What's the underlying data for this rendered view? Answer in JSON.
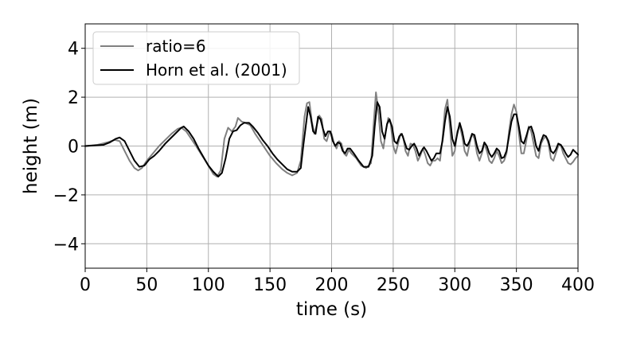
{
  "chart_data": {
    "type": "line",
    "title": "",
    "xlabel": "time (s)",
    "ylabel": "height (m)",
    "xlim": [
      0,
      400
    ],
    "ylim": [
      -5,
      5
    ],
    "xticks": [
      0,
      50,
      100,
      150,
      200,
      250,
      300,
      350,
      400
    ],
    "yticks": [
      -4,
      -2,
      0,
      2,
      4
    ],
    "ytick_labels": [
      "−4",
      "−2",
      "0",
      "2",
      "4"
    ],
    "grid": true,
    "legend_position": "top-left",
    "series": [
      {
        "name": "ratio=6",
        "color": "#808080",
        "points": [
          [
            0,
            0
          ],
          [
            10,
            0.05
          ],
          [
            18,
            0.15
          ],
          [
            24,
            0.25
          ],
          [
            28,
            0.2
          ],
          [
            32,
            -0.2
          ],
          [
            36,
            -0.6
          ],
          [
            40,
            -0.9
          ],
          [
            43,
            -1.0
          ],
          [
            46,
            -0.9
          ],
          [
            50,
            -0.6
          ],
          [
            55,
            -0.3
          ],
          [
            60,
            0.0
          ],
          [
            65,
            0.25
          ],
          [
            70,
            0.5
          ],
          [
            75,
            0.7
          ],
          [
            78,
            0.75
          ],
          [
            82,
            0.6
          ],
          [
            86,
            0.3
          ],
          [
            90,
            0.0
          ],
          [
            95,
            -0.4
          ],
          [
            100,
            -0.8
          ],
          [
            104,
            -1.15
          ],
          [
            107,
            -1.25
          ],
          [
            110,
            -1.0
          ],
          [
            113,
            0.3
          ],
          [
            116,
            0.75
          ],
          [
            119,
            0.6
          ],
          [
            122,
            0.8
          ],
          [
            124,
            1.15
          ],
          [
            127,
            1.0
          ],
          [
            130,
            0.95
          ],
          [
            134,
            0.85
          ],
          [
            138,
            0.5
          ],
          [
            142,
            0.2
          ],
          [
            146,
            -0.1
          ],
          [
            150,
            -0.4
          ],
          [
            155,
            -0.7
          ],
          [
            160,
            -0.95
          ],
          [
            164,
            -1.1
          ],
          [
            168,
            -1.2
          ],
          [
            172,
            -1.1
          ],
          [
            175,
            -0.6
          ],
          [
            178,
            1.2
          ],
          [
            180,
            1.75
          ],
          [
            182,
            1.8
          ],
          [
            184,
            1.0
          ],
          [
            186,
            0.5
          ],
          [
            188,
            0.85
          ],
          [
            190,
            1.25
          ],
          [
            192,
            1.1
          ],
          [
            194,
            0.3
          ],
          [
            196,
            0.2
          ],
          [
            198,
            0.55
          ],
          [
            200,
            0.5
          ],
          [
            202,
            0.1
          ],
          [
            204,
            -0.1
          ],
          [
            206,
            0.2
          ],
          [
            208,
            0.1
          ],
          [
            210,
            -0.3
          ],
          [
            212,
            -0.4
          ],
          [
            214,
            -0.15
          ],
          [
            216,
            -0.3
          ],
          [
            220,
            -0.5
          ],
          [
            224,
            -0.8
          ],
          [
            228,
            -0.9
          ],
          [
            232,
            -0.7
          ],
          [
            234,
            0.8
          ],
          [
            236,
            2.2
          ],
          [
            238,
            1.4
          ],
          [
            240,
            0.2
          ],
          [
            242,
            -0.1
          ],
          [
            244,
            0.6
          ],
          [
            246,
            1.15
          ],
          [
            248,
            0.9
          ],
          [
            250,
            0.0
          ],
          [
            252,
            -0.3
          ],
          [
            254,
            0.1
          ],
          [
            256,
            0.5
          ],
          [
            258,
            0.4
          ],
          [
            260,
            -0.2
          ],
          [
            262,
            -0.4
          ],
          [
            264,
            0.1
          ],
          [
            266,
            0.05
          ],
          [
            268,
            -0.2
          ],
          [
            270,
            -0.6
          ],
          [
            272,
            -0.4
          ],
          [
            274,
            -0.1
          ],
          [
            276,
            -0.35
          ],
          [
            278,
            -0.7
          ],
          [
            280,
            -0.8
          ],
          [
            282,
            -0.6
          ],
          [
            284,
            -0.6
          ],
          [
            286,
            -0.5
          ],
          [
            288,
            -0.6
          ],
          [
            290,
            0.3
          ],
          [
            292,
            1.5
          ],
          [
            294,
            1.9
          ],
          [
            296,
            0.8
          ],
          [
            298,
            -0.4
          ],
          [
            300,
            -0.2
          ],
          [
            302,
            0.6
          ],
          [
            304,
            0.85
          ],
          [
            306,
            0.4
          ],
          [
            308,
            -0.2
          ],
          [
            310,
            -0.4
          ],
          [
            312,
            0.1
          ],
          [
            314,
            0.5
          ],
          [
            316,
            0.3
          ],
          [
            318,
            -0.3
          ],
          [
            320,
            -0.6
          ],
          [
            322,
            -0.3
          ],
          [
            324,
            0.1
          ],
          [
            326,
            -0.2
          ],
          [
            328,
            -0.6
          ],
          [
            330,
            -0.7
          ],
          [
            332,
            -0.5
          ],
          [
            334,
            -0.2
          ],
          [
            336,
            -0.4
          ],
          [
            338,
            -0.7
          ],
          [
            340,
            -0.6
          ],
          [
            342,
            -0.3
          ],
          [
            344,
            0.6
          ],
          [
            346,
            1.3
          ],
          [
            348,
            1.7
          ],
          [
            350,
            1.4
          ],
          [
            352,
            0.5
          ],
          [
            354,
            -0.3
          ],
          [
            356,
            -0.3
          ],
          [
            358,
            0.2
          ],
          [
            360,
            0.8
          ],
          [
            362,
            0.6
          ],
          [
            364,
            0.1
          ],
          [
            366,
            -0.4
          ],
          [
            368,
            -0.5
          ],
          [
            370,
            0.1
          ],
          [
            372,
            0.3
          ],
          [
            374,
            0.4
          ],
          [
            376,
            0.1
          ],
          [
            378,
            -0.5
          ],
          [
            380,
            -0.6
          ],
          [
            382,
            -0.3
          ],
          [
            384,
            0.0
          ],
          [
            386,
            0.05
          ],
          [
            388,
            -0.3
          ],
          [
            390,
            -0.5
          ],
          [
            392,
            -0.7
          ],
          [
            394,
            -0.75
          ],
          [
            396,
            -0.65
          ],
          [
            398,
            -0.5
          ],
          [
            400,
            -0.4
          ]
        ]
      },
      {
        "name": "Horn et al. (2001)",
        "color": "#000000",
        "points": [
          [
            0,
            0
          ],
          [
            15,
            0.05
          ],
          [
            20,
            0.15
          ],
          [
            25,
            0.3
          ],
          [
            28,
            0.35
          ],
          [
            32,
            0.2
          ],
          [
            36,
            -0.2
          ],
          [
            40,
            -0.6
          ],
          [
            44,
            -0.85
          ],
          [
            48,
            -0.8
          ],
          [
            52,
            -0.55
          ],
          [
            56,
            -0.4
          ],
          [
            60,
            -0.2
          ],
          [
            65,
            0.1
          ],
          [
            70,
            0.35
          ],
          [
            74,
            0.55
          ],
          [
            78,
            0.75
          ],
          [
            80,
            0.8
          ],
          [
            84,
            0.6
          ],
          [
            88,
            0.3
          ],
          [
            92,
            -0.1
          ],
          [
            96,
            -0.45
          ],
          [
            100,
            -0.8
          ],
          [
            104,
            -1.05
          ],
          [
            108,
            -1.25
          ],
          [
            111,
            -1.1
          ],
          [
            114,
            -0.5
          ],
          [
            117,
            0.3
          ],
          [
            120,
            0.6
          ],
          [
            123,
            0.65
          ],
          [
            126,
            0.85
          ],
          [
            129,
            0.95
          ],
          [
            133,
            0.95
          ],
          [
            136,
            0.8
          ],
          [
            140,
            0.55
          ],
          [
            144,
            0.25
          ],
          [
            148,
            0.0
          ],
          [
            152,
            -0.3
          ],
          [
            156,
            -0.55
          ],
          [
            160,
            -0.75
          ],
          [
            164,
            -0.95
          ],
          [
            168,
            -1.05
          ],
          [
            172,
            -1.05
          ],
          [
            175,
            -0.9
          ],
          [
            177,
            0.0
          ],
          [
            179,
            0.8
          ],
          [
            181,
            1.6
          ],
          [
            183,
            1.2
          ],
          [
            185,
            0.6
          ],
          [
            187,
            0.5
          ],
          [
            189,
            1.2
          ],
          [
            191,
            1.1
          ],
          [
            193,
            0.7
          ],
          [
            195,
            0.4
          ],
          [
            197,
            0.6
          ],
          [
            199,
            0.6
          ],
          [
            201,
            0.2
          ],
          [
            203,
            0.0
          ],
          [
            205,
            0.15
          ],
          [
            207,
            0.1
          ],
          [
            209,
            -0.2
          ],
          [
            211,
            -0.3
          ],
          [
            213,
            -0.1
          ],
          [
            215,
            -0.1
          ],
          [
            218,
            -0.3
          ],
          [
            222,
            -0.6
          ],
          [
            226,
            -0.85
          ],
          [
            230,
            -0.85
          ],
          [
            233,
            -0.4
          ],
          [
            235,
            0.8
          ],
          [
            237,
            1.8
          ],
          [
            239,
            1.6
          ],
          [
            241,
            0.6
          ],
          [
            243,
            0.3
          ],
          [
            245,
            0.9
          ],
          [
            247,
            1.1
          ],
          [
            249,
            0.8
          ],
          [
            251,
            0.2
          ],
          [
            253,
            0.1
          ],
          [
            255,
            0.4
          ],
          [
            257,
            0.5
          ],
          [
            259,
            0.2
          ],
          [
            261,
            -0.1
          ],
          [
            263,
            -0.15
          ],
          [
            265,
            0.0
          ],
          [
            267,
            0.1
          ],
          [
            269,
            -0.1
          ],
          [
            271,
            -0.4
          ],
          [
            273,
            -0.2
          ],
          [
            275,
            -0.05
          ],
          [
            277,
            -0.2
          ],
          [
            279,
            -0.4
          ],
          [
            281,
            -0.6
          ],
          [
            283,
            -0.5
          ],
          [
            285,
            -0.3
          ],
          [
            288,
            -0.3
          ],
          [
            290,
            0.2
          ],
          [
            292,
            1.0
          ],
          [
            294,
            1.6
          ],
          [
            296,
            1.2
          ],
          [
            298,
            0.3
          ],
          [
            300,
            0.0
          ],
          [
            302,
            0.5
          ],
          [
            304,
            0.95
          ],
          [
            306,
            0.6
          ],
          [
            308,
            0.1
          ],
          [
            310,
            0.0
          ],
          [
            312,
            0.2
          ],
          [
            314,
            0.5
          ],
          [
            316,
            0.45
          ],
          [
            318,
            0.0
          ],
          [
            320,
            -0.3
          ],
          [
            322,
            -0.2
          ],
          [
            324,
            0.15
          ],
          [
            326,
            0.0
          ],
          [
            328,
            -0.3
          ],
          [
            330,
            -0.45
          ],
          [
            332,
            -0.3
          ],
          [
            334,
            -0.1
          ],
          [
            336,
            -0.2
          ],
          [
            338,
            -0.5
          ],
          [
            340,
            -0.45
          ],
          [
            342,
            -0.2
          ],
          [
            344,
            0.4
          ],
          [
            346,
            1.0
          ],
          [
            348,
            1.3
          ],
          [
            350,
            1.3
          ],
          [
            352,
            0.8
          ],
          [
            354,
            0.2
          ],
          [
            356,
            0.1
          ],
          [
            358,
            0.4
          ],
          [
            360,
            0.75
          ],
          [
            362,
            0.8
          ],
          [
            364,
            0.5
          ],
          [
            366,
            0.0
          ],
          [
            368,
            -0.2
          ],
          [
            370,
            0.2
          ],
          [
            372,
            0.45
          ],
          [
            374,
            0.4
          ],
          [
            376,
            0.2
          ],
          [
            378,
            -0.2
          ],
          [
            380,
            -0.3
          ],
          [
            382,
            -0.15
          ],
          [
            384,
            0.1
          ],
          [
            386,
            0.05
          ],
          [
            388,
            -0.1
          ],
          [
            390,
            -0.3
          ],
          [
            392,
            -0.45
          ],
          [
            394,
            -0.35
          ],
          [
            396,
            -0.15
          ],
          [
            398,
            -0.25
          ],
          [
            400,
            -0.35
          ]
        ]
      }
    ]
  }
}
